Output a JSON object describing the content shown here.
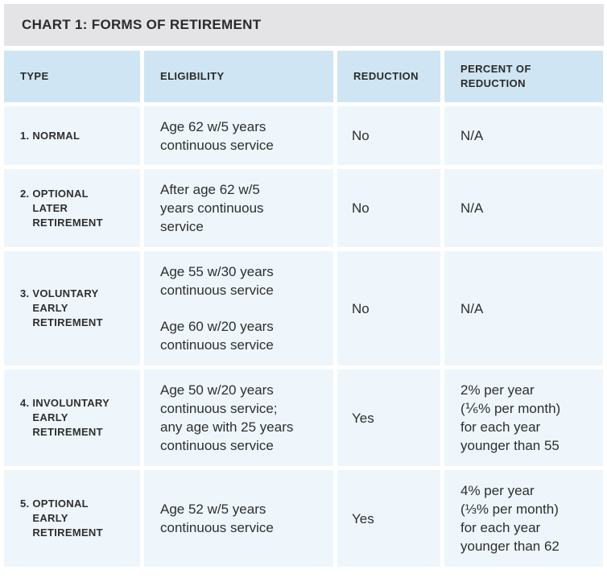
{
  "title": "CHART 1: FORMS OF RETIREMENT",
  "headers": {
    "type": "TYPE",
    "eligibility": "ELIGIBILITY",
    "reduction": "REDUCTION",
    "percent": "PERCENT OF\nREDUCTION"
  },
  "rows": [
    {
      "num": "1. ",
      "type": [
        "NORMAL"
      ],
      "eligibility": [
        "Age 62 w/5 years\ncontinuous service"
      ],
      "reduction": "No",
      "percent": "N/A"
    },
    {
      "num": "2. ",
      "type": [
        "OPTIONAL",
        "LATER",
        "RETIREMENT"
      ],
      "eligibility": [
        "After age 62 w/5\nyears continuous\nservice"
      ],
      "reduction": "No",
      "percent": "N/A"
    },
    {
      "num": "3. ",
      "type": [
        "VOLUNTARY",
        "EARLY",
        "RETIREMENT"
      ],
      "eligibility": [
        "Age 55 w/30 years\ncontinuous service",
        "Age 60 w/20 years\ncontinuous service"
      ],
      "reduction": "No",
      "percent": "N/A"
    },
    {
      "num": "4. ",
      "type": [
        "INVOLUNTARY",
        "EARLY",
        "RETIREMENT"
      ],
      "eligibility": [
        "Age 50 w/20 years\ncontinuous service;\nany age with 25 years\ncontinuous service"
      ],
      "reduction": "Yes",
      "percent": "2% per year\n(⅙% per month)\nfor each year\nyounger than 55"
    },
    {
      "num": "5. ",
      "type": [
        "OPTIONAL",
        "EARLY",
        "RETIREMENT"
      ],
      "eligibility": [
        "Age 52 w/5 years\ncontinuous service"
      ],
      "reduction": "Yes",
      "percent": "4% per year\n(⅓% per month)\nfor each year\nyounger than 62"
    }
  ]
}
